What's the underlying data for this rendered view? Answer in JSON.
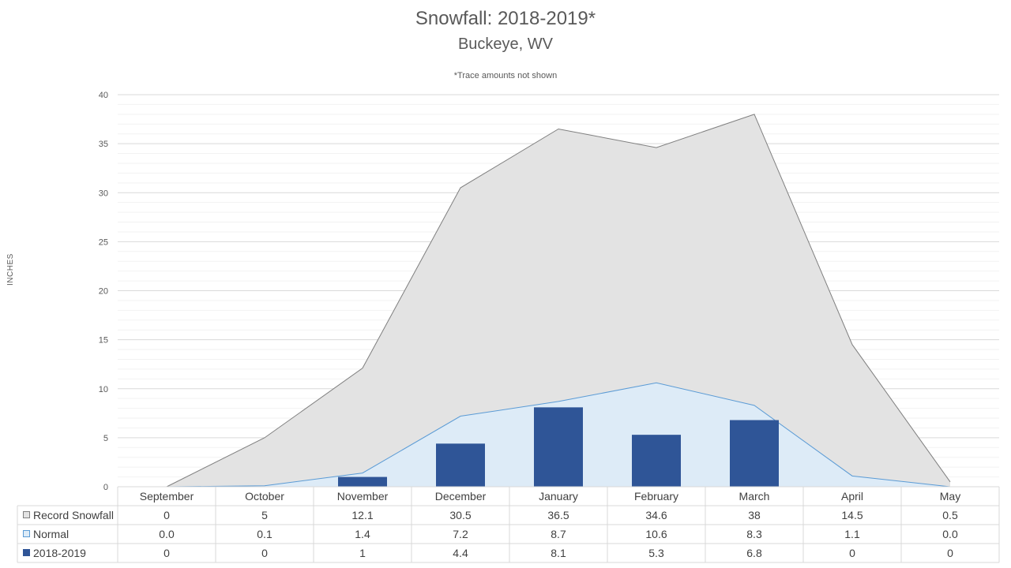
{
  "chart_data": {
    "type": "area",
    "title": "Snowfall: 2018-2019*",
    "subtitle": "Buckeye, WV",
    "note": "*Trace amounts not shown",
    "ylabel": "INCHES",
    "ylim": [
      0,
      40
    ],
    "yticks": [
      0,
      5,
      10,
      15,
      20,
      25,
      30,
      35,
      40
    ],
    "grid": true,
    "categories": [
      "September",
      "October",
      "November",
      "December",
      "January",
      "February",
      "March",
      "April",
      "May"
    ],
    "series": [
      {
        "name": "Record Snowfall",
        "kind": "area",
        "color": "#E3E3E3",
        "line": "#7F7F7F",
        "values": [
          0,
          5,
          12.1,
          30.5,
          36.5,
          34.6,
          38,
          14.5,
          0.5
        ],
        "labels": [
          "0",
          "5",
          "12.1",
          "30.5",
          "36.5",
          "34.6",
          "38",
          "14.5",
          "0.5"
        ]
      },
      {
        "name": "Normal",
        "kind": "area",
        "color": "#DDEBF7",
        "line": "#5B9BD5",
        "values": [
          0.0,
          0.1,
          1.4,
          7.2,
          8.7,
          10.6,
          8.3,
          1.1,
          0.0
        ],
        "labels": [
          "0.0",
          "0.1",
          "1.4",
          "7.2",
          "8.7",
          "10.6",
          "8.3",
          "1.1",
          "0.0"
        ]
      },
      {
        "name": "2018-2019",
        "kind": "bar",
        "color": "#2F5597",
        "values": [
          0,
          0,
          1,
          4.4,
          8.1,
          5.3,
          6.8,
          0,
          0
        ],
        "labels": [
          "0",
          "0",
          "1",
          "4.4",
          "8.1",
          "5.3",
          "6.8",
          "0",
          "0"
        ]
      }
    ]
  }
}
